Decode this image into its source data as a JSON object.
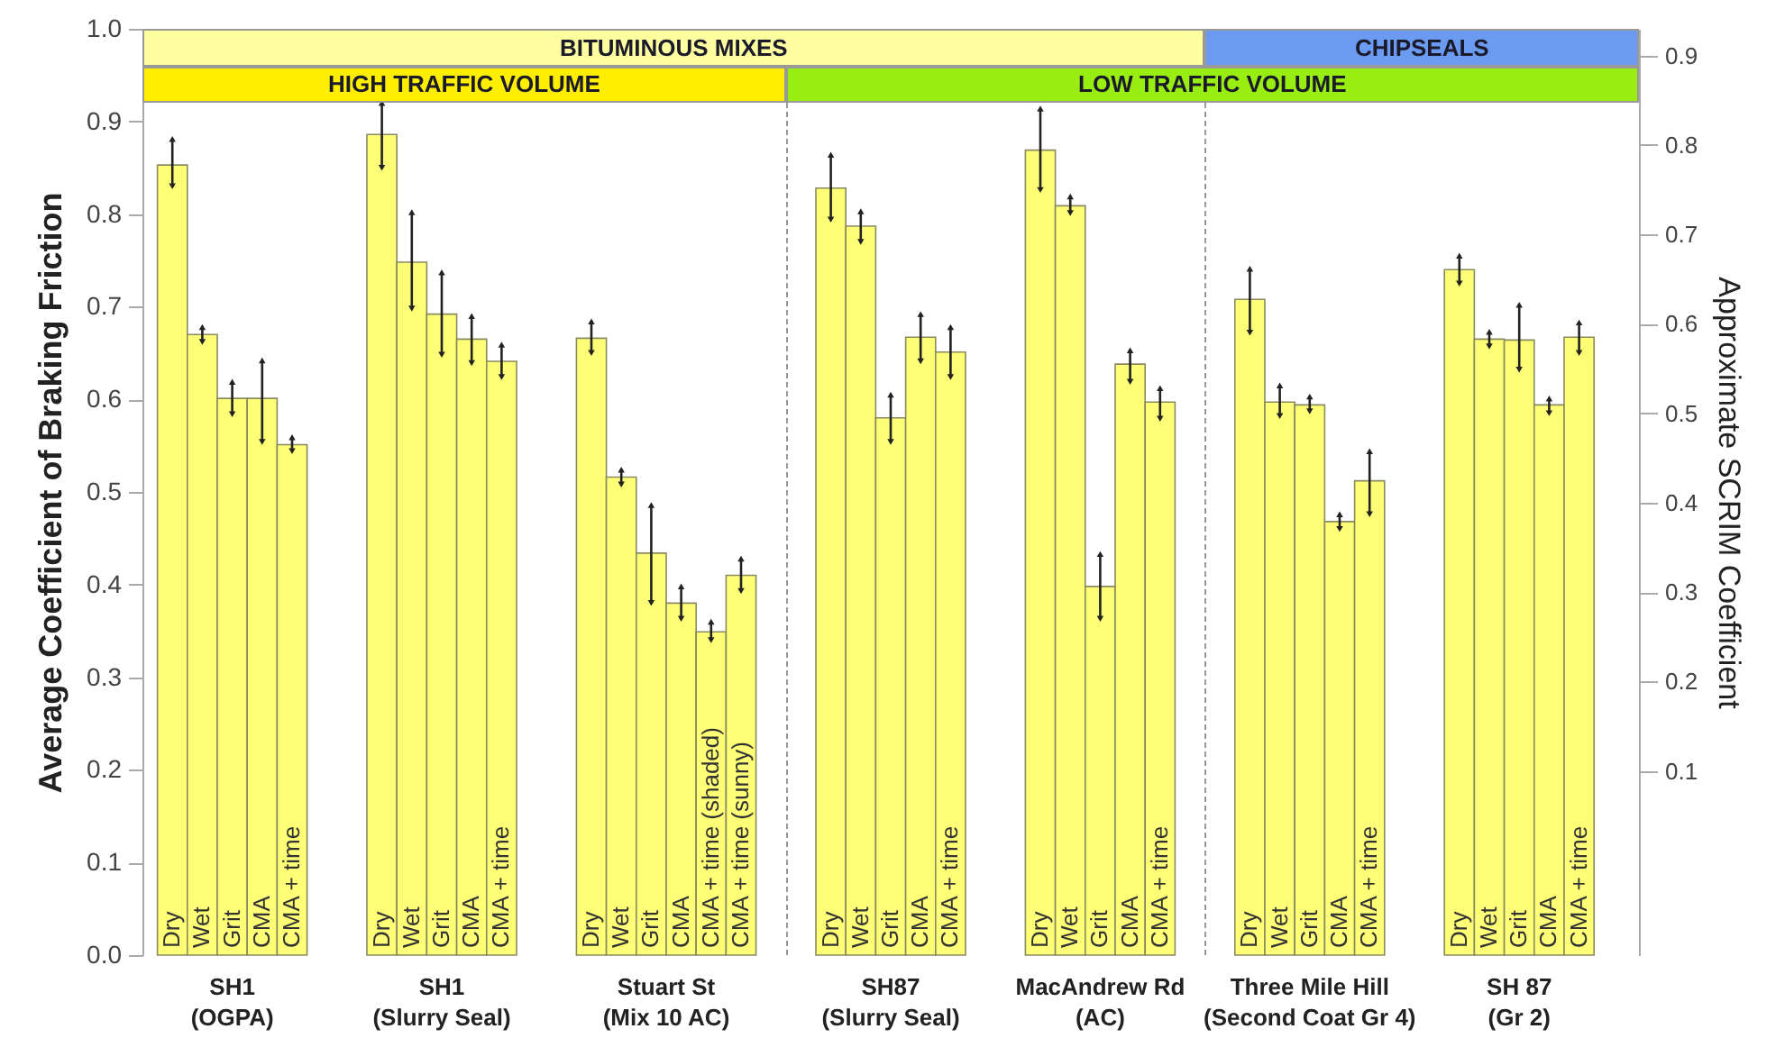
{
  "chart_data": {
    "type": "bar",
    "ylabel": "Average Coefficient of Braking Friction",
    "y2label": "Approximate SCRIM Coefficient",
    "categories": [
      "SH1\n(OGPA)",
      "SH1\n(Slurry Seal)",
      "Stuart St\n(Mix 10 AC)",
      "SH87\n(Slurry Seal)",
      "MacAndrew Rd\n(AC)",
      "Three Mile Hill\n(Second Coat Gr 4)",
      "SH 87\n(Gr 2)"
    ],
    "series": [
      {
        "name": "Dry",
        "color": "#ffff77",
        "values": [
          0.853,
          0.886,
          0.666,
          0.828,
          0.869,
          0.708,
          0.74
        ],
        "errors": [
          [
            0.83,
            0.881
          ],
          [
            0.85,
            0.92
          ],
          [
            0.65,
            0.684
          ],
          [
            0.794,
            0.864
          ],
          [
            0.826,
            0.914
          ],
          [
            0.672,
            0.741
          ],
          [
            0.725,
            0.755
          ]
        ]
      },
      {
        "name": "Wet",
        "color": "#ffff77",
        "values": [
          0.67,
          0.748,
          0.516,
          0.787,
          0.809,
          0.597,
          0.665
        ],
        "errors": [
          [
            0.662,
            0.678
          ],
          [
            0.698,
            0.802
          ],
          [
            0.508,
            0.524
          ],
          [
            0.77,
            0.803
          ],
          [
            0.801,
            0.819
          ],
          [
            0.582,
            0.615
          ],
          [
            0.657,
            0.673
          ]
        ]
      },
      {
        "name": "Grit",
        "color": "#ffff77",
        "values": [
          0.601,
          0.692,
          0.434,
          0.58,
          0.398,
          0.594,
          0.664
        ],
        "errors": [
          [
            0.584,
            0.619
          ],
          [
            0.648,
            0.737
          ],
          [
            0.38,
            0.486
          ],
          [
            0.554,
            0.605
          ],
          [
            0.363,
            0.433
          ],
          [
            0.587,
            0.603
          ],
          [
            0.632,
            0.702
          ]
        ]
      },
      {
        "name": "CMA",
        "color": "#ffff77",
        "values": [
          0.601,
          0.665,
          0.38,
          0.667,
          0.638,
          0.468,
          0.594
        ],
        "errors": [
          [
            0.554,
            0.642
          ],
          [
            0.639,
            0.69
          ],
          [
            0.363,
            0.398
          ],
          [
            0.641,
            0.692
          ],
          [
            0.619,
            0.653
          ],
          [
            0.46,
            0.476
          ],
          [
            0.585,
            0.601
          ]
        ]
      },
      {
        "name": "CMA + time",
        "color": "#ffff77",
        "values": [
          0.551,
          0.641,
          null,
          0.651,
          0.597,
          0.512,
          0.667
        ],
        "errors": [
          [
            0.544,
            0.559
          ],
          [
            0.624,
            0.659
          ],
          null,
          [
            0.624,
            0.678
          ],
          [
            0.579,
            0.612
          ],
          [
            0.476,
            0.544
          ],
          [
            0.65,
            0.683
          ]
        ]
      },
      {
        "name": "CMA + time (shaded)",
        "color": "#ffff77",
        "values": [
          null,
          null,
          0.349,
          null,
          null,
          null,
          null
        ],
        "errors": [
          null,
          null,
          [
            0.34,
            0.36
          ],
          null,
          null,
          null,
          null
        ]
      },
      {
        "name": "CMA + time (sunny)",
        "color": "#ffff77",
        "values": [
          null,
          null,
          0.41,
          null,
          null,
          null,
          null
        ],
        "errors": [
          null,
          null,
          [
            0.393,
            0.428
          ],
          null,
          null,
          null,
          null
        ]
      }
    ],
    "ylim": [
      0,
      1.0
    ],
    "yticks": [
      {
        "value": 0,
        "label": "0.0"
      },
      0.1,
      0.2,
      0.3,
      0.4,
      0.5,
      0.6,
      0.7,
      0.8,
      0.9,
      {
        "value": 1.0,
        "label": "1.0"
      }
    ],
    "y2lim": [
      -0.106,
      0.93
    ],
    "y2ticks": [
      0.1,
      0.2,
      0.3,
      0.4,
      0.5,
      0.6,
      0.7,
      0.8,
      0.9
    ],
    "annotations": [
      "BITUMINOUS MIXES",
      "CHIPSEALS",
      "HIGH TRAFFIC VOLUME",
      "LOW TRAFFIC VOLUME"
    ],
    "grid": false
  }
}
